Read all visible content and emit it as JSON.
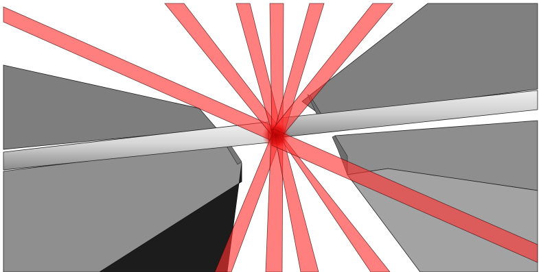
{
  "scene": {
    "background": "#ffffff",
    "colors": {
      "block_dark": "#808080",
      "block_mid": "#8e8e8e",
      "block_light": "#a4a4a4",
      "block_shadow": "#1c1c1c",
      "edge": "#222222",
      "beam": "#ff3030",
      "beam_core": "#c80000",
      "rod_light": "#e9e9e9",
      "rod_dark": "#8c8c8c"
    },
    "beam_count": 9
  }
}
